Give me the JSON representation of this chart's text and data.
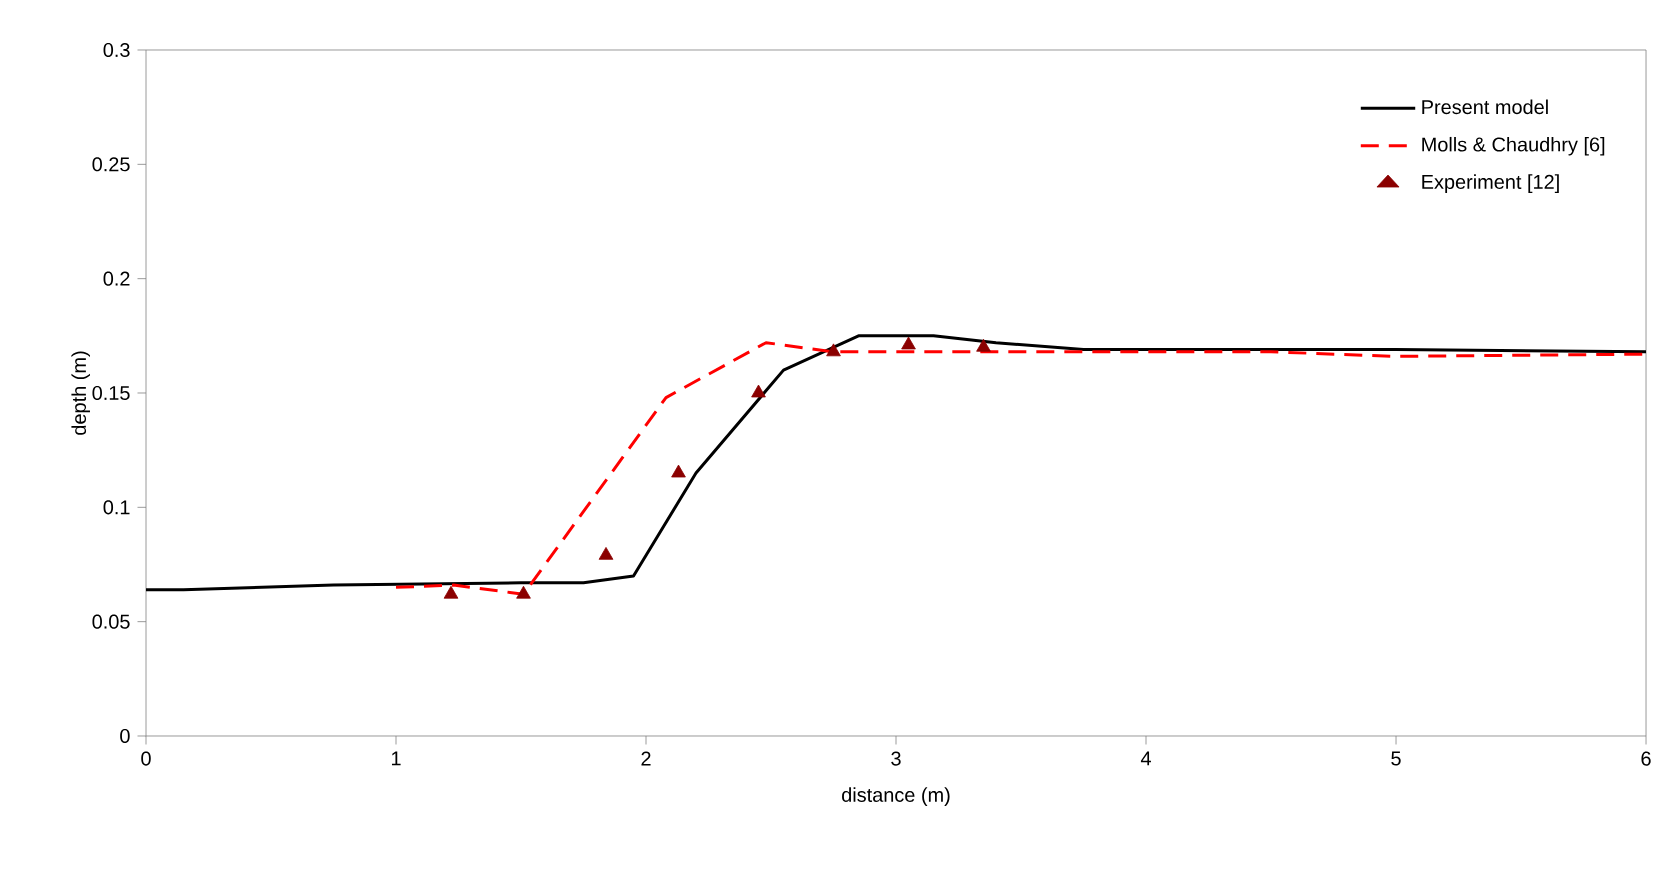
{
  "chart_data": {
    "type": "line",
    "xlabel": "distance (m)",
    "ylabel": "depth (m)",
    "xlim": [
      0,
      6
    ],
    "ylim": [
      0,
      0.3
    ],
    "xticks": [
      0,
      1,
      2,
      3,
      4,
      5,
      6
    ],
    "yticks": [
      0,
      0.05,
      0.1,
      0.15,
      0.2,
      0.25,
      0.3
    ],
    "grid": false,
    "legend": "top right",
    "series": [
      {
        "name": "Present model",
        "color": "#000000",
        "line_style": "solid",
        "marker": "none",
        "x": [
          0,
          0.15,
          0.75,
          1.5,
          1.75,
          1.95,
          2.2,
          2.55,
          2.85,
          3.15,
          3.4,
          3.75,
          5,
          6
        ],
        "values": [
          0.064,
          0.064,
          0.066,
          0.067,
          0.067,
          0.07,
          0.115,
          0.16,
          0.175,
          0.175,
          0.172,
          0.169,
          0.169,
          0.168
        ]
      },
      {
        "name": "Molls & Chaudhry [6]",
        "color": "#ff0000",
        "line_style": "dashed",
        "marker": "none",
        "x": [
          1.0,
          1.23,
          1.51,
          2.08,
          2.48,
          2.75,
          3.5,
          4.5,
          5,
          6
        ],
        "values": [
          0.065,
          0.066,
          0.062,
          0.148,
          0.172,
          0.168,
          0.168,
          0.168,
          0.166,
          0.167
        ]
      },
      {
        "name": "Experiment [12]",
        "type": "scatter",
        "color": "#8b0000",
        "marker": "triangle",
        "x": [
          1.22,
          1.51,
          1.84,
          2.13,
          2.45,
          2.75,
          3.05,
          3.35
        ],
        "values": [
          0.062,
          0.062,
          0.079,
          0.115,
          0.15,
          0.168,
          0.171,
          0.17
        ]
      }
    ]
  }
}
